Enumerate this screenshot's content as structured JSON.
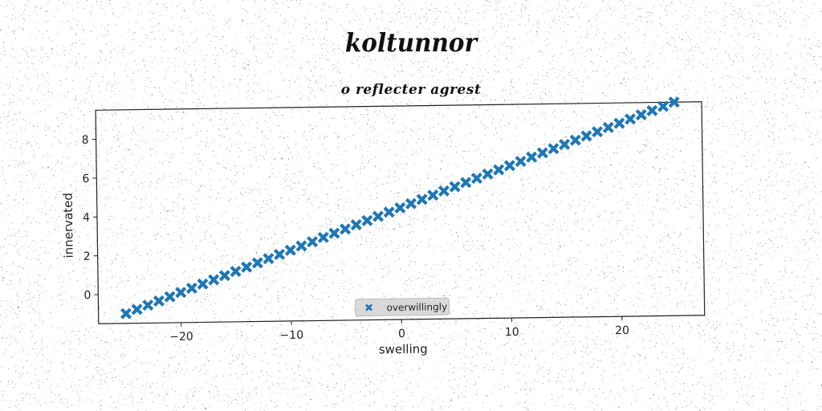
{
  "suptitle": "koltunnor",
  "chart_data": {
    "type": "scatter",
    "title": "o reflecter agrest",
    "xlabel": "swelling",
    "ylabel": "innervated",
    "xlim": [
      -27.5,
      27.5
    ],
    "ylim": [
      -1.5,
      9.5
    ],
    "xticks": [
      -20,
      -10,
      0,
      10,
      20
    ],
    "yticks": [
      0,
      2,
      4,
      6,
      8
    ],
    "xtick_labels": [
      "−20",
      "−10",
      "0",
      "10",
      "20"
    ],
    "ytick_labels": [
      "0",
      "2",
      "4",
      "6",
      "8"
    ],
    "marker": "X",
    "grid": false,
    "legend": {
      "placement": "bottom-center",
      "entries": [
        "overwillingly"
      ]
    },
    "series": [
      {
        "name": "overwillingly",
        "color": "#1f77b4",
        "x": [
          -25,
          -24,
          -23,
          -22,
          -21,
          -20,
          -19,
          -18,
          -17,
          -16,
          -15,
          -14,
          -13,
          -12,
          -11,
          -10,
          -9,
          -8,
          -7,
          -6,
          -5,
          -4,
          -3,
          -2,
          -1,
          0,
          1,
          2,
          3,
          4,
          5,
          6,
          7,
          8,
          9,
          10,
          11,
          12,
          13,
          14,
          15,
          16,
          17,
          18,
          19,
          20,
          21,
          22,
          23,
          24,
          25
        ],
        "y": [
          -1.0,
          -0.79,
          -0.58,
          -0.37,
          -0.16,
          0.05,
          0.26,
          0.47,
          0.68,
          0.89,
          1.1,
          1.31,
          1.52,
          1.73,
          1.94,
          2.15,
          2.36,
          2.57,
          2.78,
          2.99,
          3.2,
          3.41,
          3.62,
          3.83,
          4.04,
          4.25,
          4.46,
          4.67,
          4.88,
          5.09,
          5.3,
          5.51,
          5.72,
          5.93,
          6.14,
          6.35,
          6.56,
          6.77,
          6.98,
          7.19,
          7.4,
          7.61,
          7.82,
          8.03,
          8.24,
          8.45,
          8.66,
          8.87,
          9.08,
          9.29,
          9.5
        ]
      }
    ]
  }
}
